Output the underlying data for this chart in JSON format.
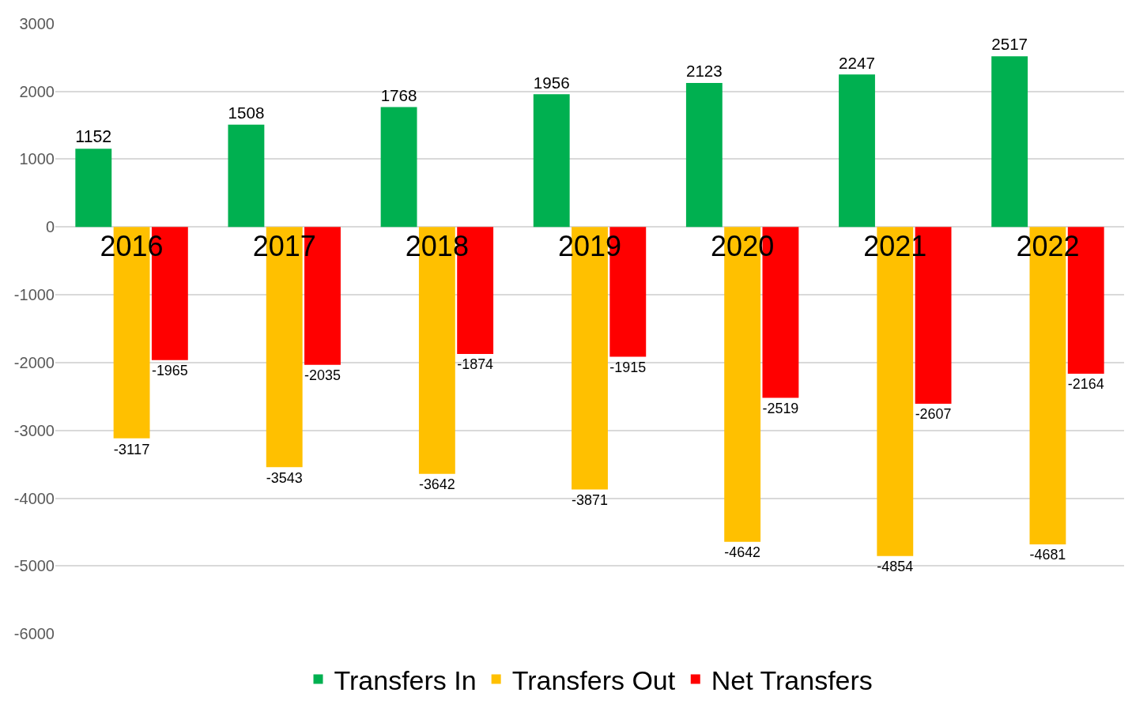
{
  "chart_data": {
    "type": "bar",
    "categories": [
      "2016",
      "2017",
      "2018",
      "2019",
      "2020",
      "2021",
      "2022"
    ],
    "series": [
      {
        "name": "Transfers In",
        "color": "#00b050",
        "values": [
          1152,
          1508,
          1768,
          1956,
          2123,
          2247,
          2517
        ]
      },
      {
        "name": "Transfers Out",
        "color": "#ffc000",
        "values": [
          -3117,
          -3543,
          -3642,
          -3871,
          -4642,
          -4854,
          -4681
        ]
      },
      {
        "name": "Net Transfers",
        "color": "#ff0000",
        "values": [
          -1965,
          -2035,
          -1874,
          -1915,
          -2519,
          -2607,
          -2164
        ]
      }
    ],
    "ylim": [
      -6000,
      3000
    ],
    "yticks": [
      -6000,
      -5000,
      -4000,
      -3000,
      -2000,
      -1000,
      0,
      1000,
      2000,
      3000
    ],
    "grid": "y",
    "legend": "bottom",
    "data_labels": true
  }
}
